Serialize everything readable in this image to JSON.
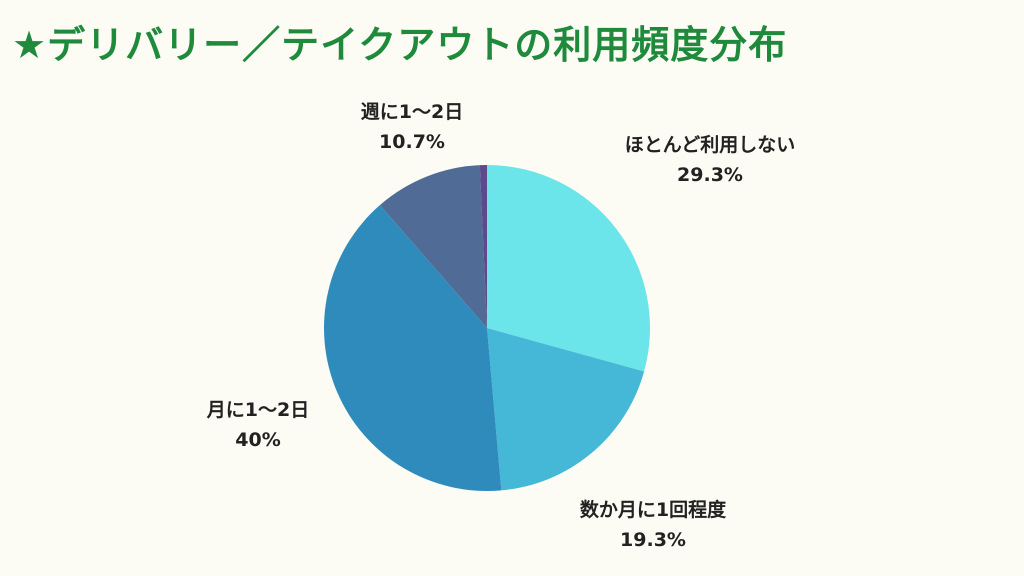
{
  "title": "★デリバリー／テイクアウトの利用頻度分布",
  "chart_data": {
    "type": "pie",
    "title": "★デリバリー／テイクアウトの利用頻度分布",
    "slices": [
      {
        "label": "ほとんど利用しない",
        "value": 29.3,
        "value_label": "29.3%",
        "color": "#6ce5ea"
      },
      {
        "label": "数か月に1回程度",
        "value": 19.3,
        "value_label": "19.3%",
        "color": "#45b7d7"
      },
      {
        "label": "月に1〜2日",
        "value": 40,
        "value_label": "40%",
        "color": "#2e8bbb"
      },
      {
        "label": "週に1〜2日",
        "value": 10.7,
        "value_label": "10.7%",
        "color": "#4f6b96"
      },
      {
        "label": "",
        "value": 0.7,
        "value_label": "",
        "color": "#5c4a8c"
      }
    ]
  }
}
